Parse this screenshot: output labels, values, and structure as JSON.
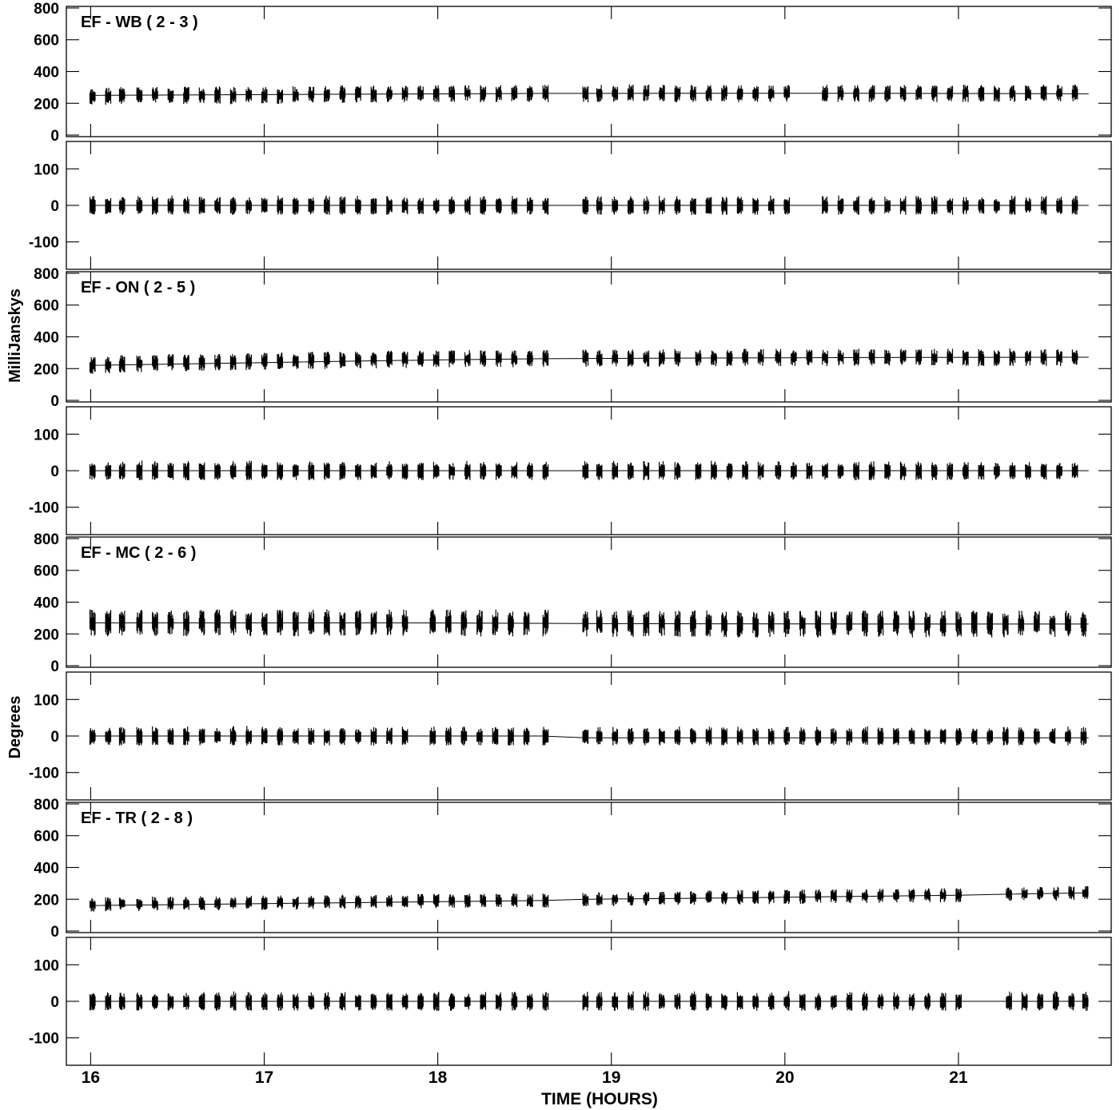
{
  "chart_data": {
    "type": "line",
    "xlabel": "TIME (HOURS)",
    "xlim": [
      15.86,
      21.88
    ],
    "xticks": [
      16,
      17,
      18,
      19,
      20,
      21
    ],
    "ylabel_amp": "MilliJanskys",
    "ylabel_phase": "Degrees",
    "amp_ylim": [
      -10,
      810
    ],
    "amp_ticks": [
      0,
      200,
      400,
      600,
      800
    ],
    "phase_ylim": [
      -175,
      175
    ],
    "phase_ticks": [
      -100,
      0,
      100
    ],
    "grid": false,
    "panels": [
      {
        "title": "EF - WB ( 2 - 3 )",
        "scans": [
          16.01,
          16.1,
          16.18,
          16.28,
          16.37,
          16.46,
          16.55,
          16.64,
          16.73,
          16.82,
          16.91,
          17.0,
          17.09,
          17.18,
          17.27,
          17.36,
          17.45,
          17.54,
          17.63,
          17.72,
          17.81,
          17.9,
          17.99,
          18.08,
          18.17,
          18.26,
          18.35,
          18.44,
          18.53,
          18.62,
          18.85,
          18.93,
          19.02,
          19.11,
          19.2,
          19.29,
          19.38,
          19.47,
          19.56,
          19.65,
          19.74,
          19.83,
          19.92,
          20.01,
          20.23,
          20.32,
          20.41,
          20.5,
          20.59,
          20.68,
          20.77,
          20.86,
          20.95,
          21.04,
          21.13,
          21.22,
          21.31,
          21.4,
          21.49,
          21.58,
          21.67
        ],
        "amp_mean": [
          240,
          245,
          248,
          250,
          252,
          248,
          250,
          250,
          252,
          248,
          250,
          252,
          250,
          255,
          255,
          257,
          258,
          260,
          258,
          258,
          258,
          260,
          262,
          262,
          262,
          260,
          262,
          262,
          262,
          262,
          260,
          262,
          262,
          265,
          265,
          262,
          262,
          262,
          262,
          265,
          262,
          262,
          262,
          262,
          262,
          262,
          262,
          262,
          262,
          262,
          262,
          262,
          262,
          262,
          262,
          260,
          262,
          262,
          262,
          262,
          262
        ],
        "amp_fit": [
          [
            16.0,
            250
          ],
          [
            17.5,
            257
          ],
          [
            18.6,
            262
          ],
          [
            19.4,
            263
          ],
          [
            20.5,
            263
          ],
          [
            21.75,
            260
          ]
        ],
        "phase_fit": [
          [
            16.0,
            0
          ],
          [
            21.75,
            0
          ]
        ]
      },
      {
        "title": "EF - ON ( 2 - 5 )",
        "scans": [
          16.01,
          16.1,
          16.18,
          16.28,
          16.37,
          16.46,
          16.55,
          16.64,
          16.73,
          16.82,
          16.91,
          17.0,
          17.09,
          17.18,
          17.27,
          17.36,
          17.45,
          17.54,
          17.63,
          17.72,
          17.81,
          17.9,
          17.99,
          18.08,
          18.17,
          18.26,
          18.35,
          18.44,
          18.53,
          18.62,
          18.85,
          18.93,
          19.02,
          19.11,
          19.2,
          19.29,
          19.38,
          19.5,
          19.59,
          19.68,
          19.77,
          19.86,
          19.96,
          20.05,
          20.14,
          20.23,
          20.32,
          20.41,
          20.5,
          20.59,
          20.68,
          20.77,
          20.86,
          20.95,
          21.04,
          21.13,
          21.22,
          21.31,
          21.4,
          21.49,
          21.58,
          21.67
        ],
        "amp_mean": [
          220,
          225,
          230,
          232,
          235,
          238,
          238,
          240,
          240,
          242,
          244,
          246,
          248,
          250,
          252,
          252,
          254,
          256,
          256,
          258,
          258,
          260,
          262,
          262,
          262,
          262,
          262,
          262,
          262,
          264,
          265,
          265,
          266,
          266,
          266,
          266,
          268,
          270,
          270,
          270,
          270,
          270,
          270,
          270,
          270,
          270,
          270,
          272,
          272,
          272,
          272,
          270,
          270,
          270,
          270,
          270,
          270,
          272,
          270,
          270,
          270,
          272
        ],
        "amp_fit": [
          [
            16.0,
            220
          ],
          [
            17.0,
            238
          ],
          [
            18.0,
            255
          ],
          [
            18.6,
            262
          ],
          [
            19.4,
            266
          ],
          [
            20.5,
            270
          ],
          [
            21.75,
            272
          ]
        ],
        "phase_fit": [
          [
            16.0,
            0
          ],
          [
            21.75,
            0
          ]
        ]
      },
      {
        "title": "EF - MC ( 2 - 6 )",
        "scans": [
          16.01,
          16.1,
          16.18,
          16.28,
          16.37,
          16.46,
          16.55,
          16.64,
          16.73,
          16.82,
          16.91,
          17.0,
          17.09,
          17.18,
          17.27,
          17.36,
          17.45,
          17.54,
          17.63,
          17.72,
          17.81,
          17.97,
          18.06,
          18.15,
          18.24,
          18.33,
          18.42,
          18.51,
          18.62,
          18.85,
          18.93,
          19.02,
          19.11,
          19.2,
          19.29,
          19.38,
          19.47,
          19.56,
          19.65,
          19.74,
          19.83,
          19.92,
          20.01,
          20.1,
          20.19,
          20.28,
          20.37,
          20.46,
          20.55,
          20.64,
          20.73,
          20.82,
          20.91,
          21.0,
          21.09,
          21.18,
          21.27,
          21.36,
          21.45,
          21.54,
          21.63,
          21.72
        ],
        "amp_mean": [
          270,
          268,
          270,
          270,
          270,
          270,
          268,
          270,
          270,
          270,
          270,
          270,
          270,
          268,
          270,
          270,
          268,
          270,
          270,
          270,
          270,
          275,
          272,
          268,
          268,
          268,
          268,
          268,
          268,
          268,
          266,
          266,
          265,
          266,
          265,
          262,
          264,
          264,
          262,
          262,
          262,
          262,
          262,
          262,
          262,
          262,
          262,
          262,
          262,
          262,
          262,
          262,
          262,
          262,
          262,
          262,
          262,
          262,
          262,
          262,
          262,
          262
        ],
        "amp_fit": [
          [
            16.0,
            270
          ],
          [
            17.8,
            270
          ],
          [
            19.0,
            265
          ],
          [
            20.5,
            262
          ],
          [
            21.75,
            262
          ]
        ],
        "phase_fit": [
          [
            16.0,
            0
          ],
          [
            18.6,
            0
          ],
          [
            18.85,
            -5
          ],
          [
            21.75,
            -5
          ]
        ]
      },
      {
        "title": "EF - TR ( 2 - 8 )",
        "scans": [
          16.01,
          16.1,
          16.18,
          16.28,
          16.37,
          16.46,
          16.55,
          16.64,
          16.73,
          16.82,
          16.91,
          17.0,
          17.09,
          17.18,
          17.27,
          17.36,
          17.45,
          17.54,
          17.63,
          17.72,
          17.81,
          17.9,
          17.99,
          18.08,
          18.17,
          18.26,
          18.35,
          18.44,
          18.53,
          18.62,
          18.85,
          18.93,
          19.02,
          19.11,
          19.2,
          19.29,
          19.38,
          19.47,
          19.56,
          19.65,
          19.74,
          19.83,
          19.92,
          20.01,
          20.1,
          20.19,
          20.28,
          20.37,
          20.46,
          20.55,
          20.64,
          20.73,
          20.82,
          20.91,
          21.0,
          21.29,
          21.38,
          21.47,
          21.56,
          21.65,
          21.73
        ],
        "amp_mean": [
          165,
          168,
          170,
          170,
          172,
          172,
          175,
          175,
          175,
          176,
          178,
          178,
          180,
          180,
          182,
          182,
          184,
          185,
          186,
          186,
          188,
          188,
          190,
          190,
          190,
          190,
          190,
          190,
          190,
          192,
          198,
          200,
          200,
          202,
          205,
          205,
          206,
          208,
          210,
          210,
          212,
          212,
          214,
          215,
          216,
          218,
          218,
          220,
          220,
          222,
          222,
          224,
          225,
          225,
          226,
          232,
          234,
          235,
          236,
          238,
          240
        ],
        "amp_fit": [
          [
            16.0,
            160
          ],
          [
            18.6,
            192
          ],
          [
            18.85,
            200
          ],
          [
            19.4,
            205
          ],
          [
            21.0,
            225
          ],
          [
            21.29,
            232
          ],
          [
            21.75,
            240
          ]
        ],
        "phase_fit": [
          [
            16.0,
            0
          ],
          [
            21.75,
            0
          ]
        ]
      }
    ]
  }
}
